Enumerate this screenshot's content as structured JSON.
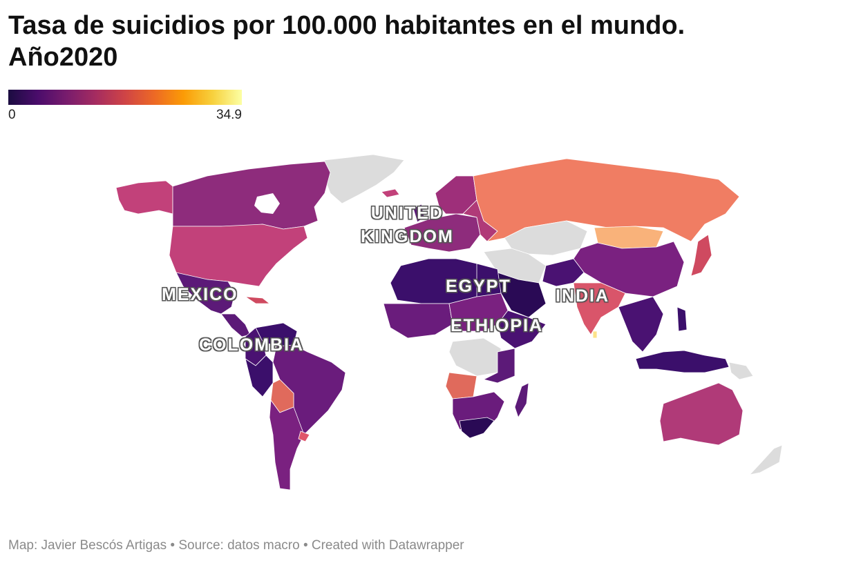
{
  "title": {
    "line1": "Tasa de suicidios por 100.000 habitantes en el mundo.",
    "line2": "Año2020"
  },
  "legend": {
    "min_label": "0",
    "max_label": "34.9",
    "min": 0,
    "max": 34.9,
    "color_scale": [
      "#1b0c41",
      "#4a0c6b",
      "#781c6d",
      "#a52c60",
      "#cf4446",
      "#ed6925",
      "#fb9b06",
      "#f7d13d",
      "#fcffa4"
    ],
    "no_data_color": "#dcdcdc"
  },
  "map_labels": {
    "uk_line1": "UNITED",
    "uk_line2": "KINGDOM",
    "egypt": "EGYPT",
    "india": "INDIA",
    "mexico": "MEXICO",
    "ethiopia": "ETHIOPIA",
    "colombia": "COLOMBIA"
  },
  "footer": {
    "text": "Map: Javier Bescós Artigas • Source: datos macro • Created with Datawrapper"
  }
}
